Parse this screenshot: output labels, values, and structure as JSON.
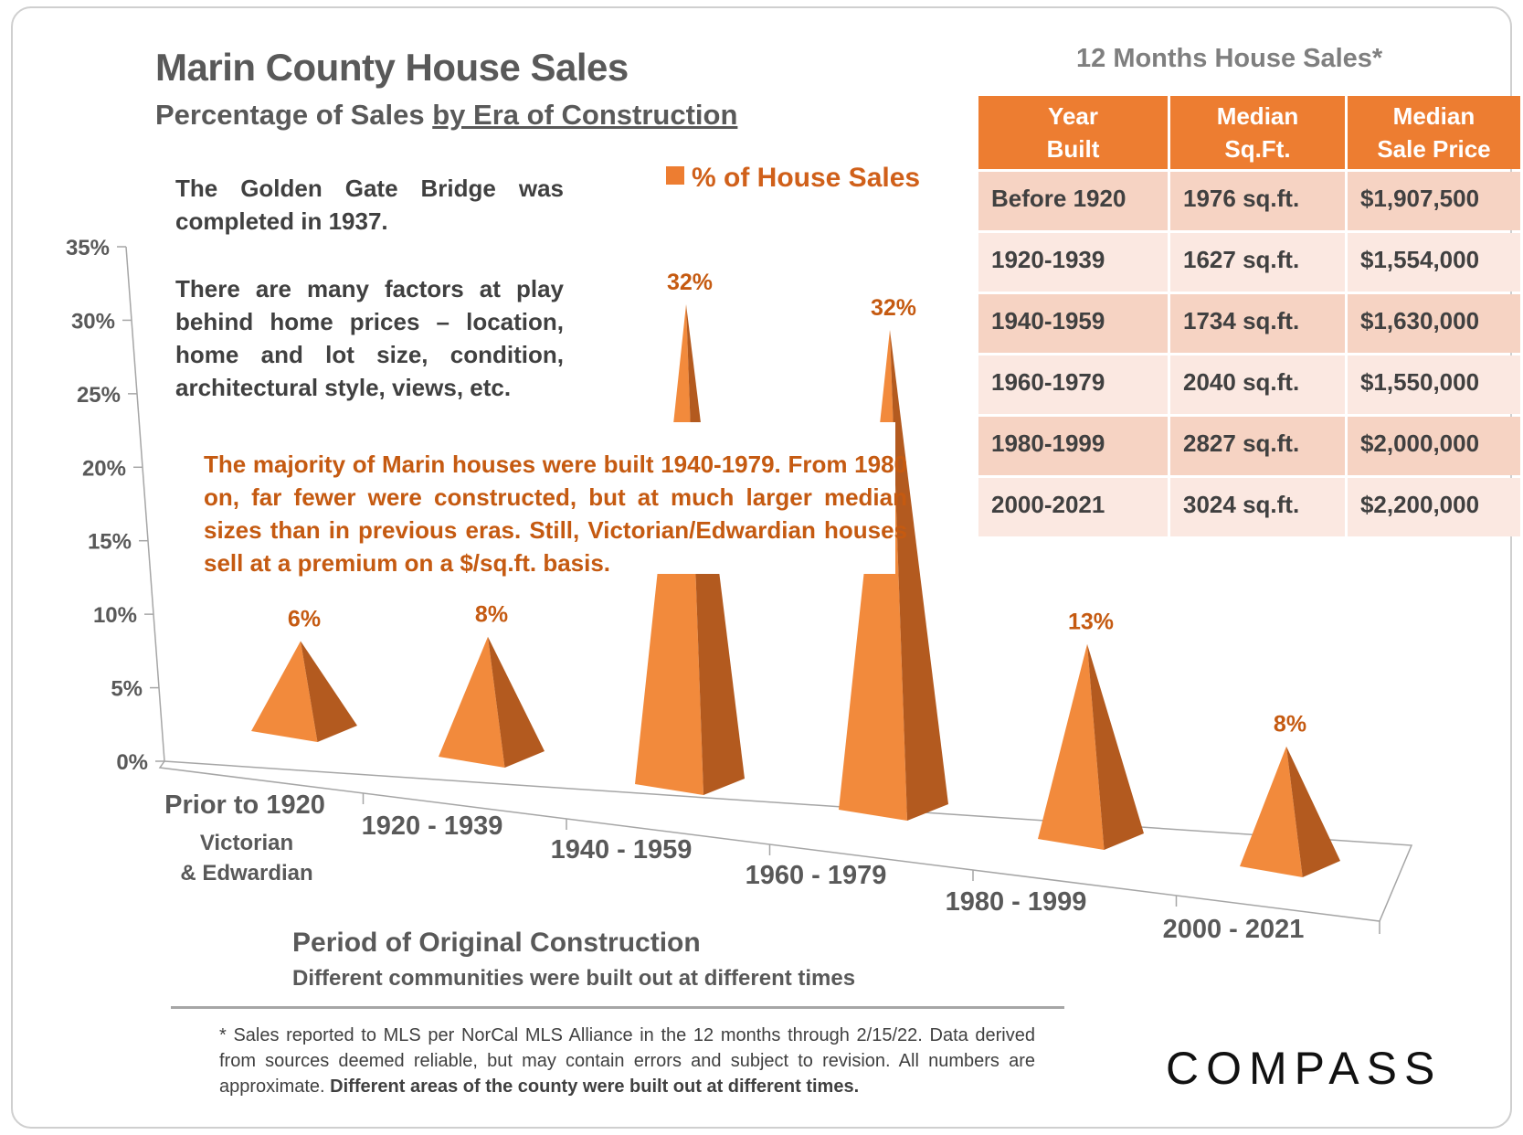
{
  "title": "Marin County House Sales",
  "subtitle_plain": "Percentage of Sales ",
  "subtitle_underlined": "by Era of Construction",
  "notes": [
    "The Golden Gate Bridge was completed in 1937.",
    "There are many factors at play behind home prices – location, home and lot size, condition, architectural style, views, etc.",
    "The majority of Marin houses were built 1940-1979. From 1980 on, far fewer were constructed, but at much larger median sizes than in previous eras. Still, Victorian/Edwardian houses sell at a premium on a $/sq.ft. basis."
  ],
  "chart_data": {
    "type": "bar",
    "style": "3d-pyramid",
    "categories": [
      "Prior to 1920",
      "1920 - 1939",
      "1940 - 1959",
      "1960 - 1979",
      "1980 - 1999",
      "2000 - 2021"
    ],
    "category_sublabels": [
      "Victorian",
      "& Edwardian"
    ],
    "series": [
      {
        "name": "% of House Sales",
        "values": [
          6,
          8,
          32,
          32,
          13,
          8
        ],
        "color": "#ed7d31"
      }
    ],
    "data_labels": [
      "6%",
      "8%",
      "32%",
      "32%",
      "13%",
      "8%"
    ],
    "y_ticks": [
      "0%",
      "5%",
      "10%",
      "15%",
      "20%",
      "25%",
      "30%",
      "35%"
    ],
    "ylim": [
      0,
      35
    ],
    "xlabel": "Period of Original Construction",
    "xlabel_sub": "Different communities were built out at different times",
    "legend_position": "top"
  },
  "table": {
    "title": "12 Months House Sales*",
    "headers": [
      [
        "Year",
        "Built"
      ],
      [
        "Median",
        "Sq.Ft."
      ],
      [
        "Median",
        "Sale Price"
      ]
    ],
    "rows": [
      [
        "Before 1920",
        "1976 sq.ft.",
        "$1,907,500"
      ],
      [
        "1920-1939",
        "1627 sq.ft.",
        "$1,554,000"
      ],
      [
        "1940-1959",
        "1734 sq.ft.",
        "$1,630,000"
      ],
      [
        "1960-1979",
        "2040 sq.ft.",
        "$1,550,000"
      ],
      [
        "1980-1999",
        "2827 sq.ft.",
        "$2,000,000"
      ],
      [
        "2000-2021",
        "3024 sq.ft.",
        "$2,200,000"
      ]
    ]
  },
  "footnote_plain": "* Sales reported to MLS per NorCal MLS Alliance in the 12 months through 2/15/22.  Data derived from sources deemed reliable, but may contain errors and subject to revision. All numbers are approximate. ",
  "footnote_bold": "Different areas of the county were built out at different times.",
  "logo": "COMPASS"
}
